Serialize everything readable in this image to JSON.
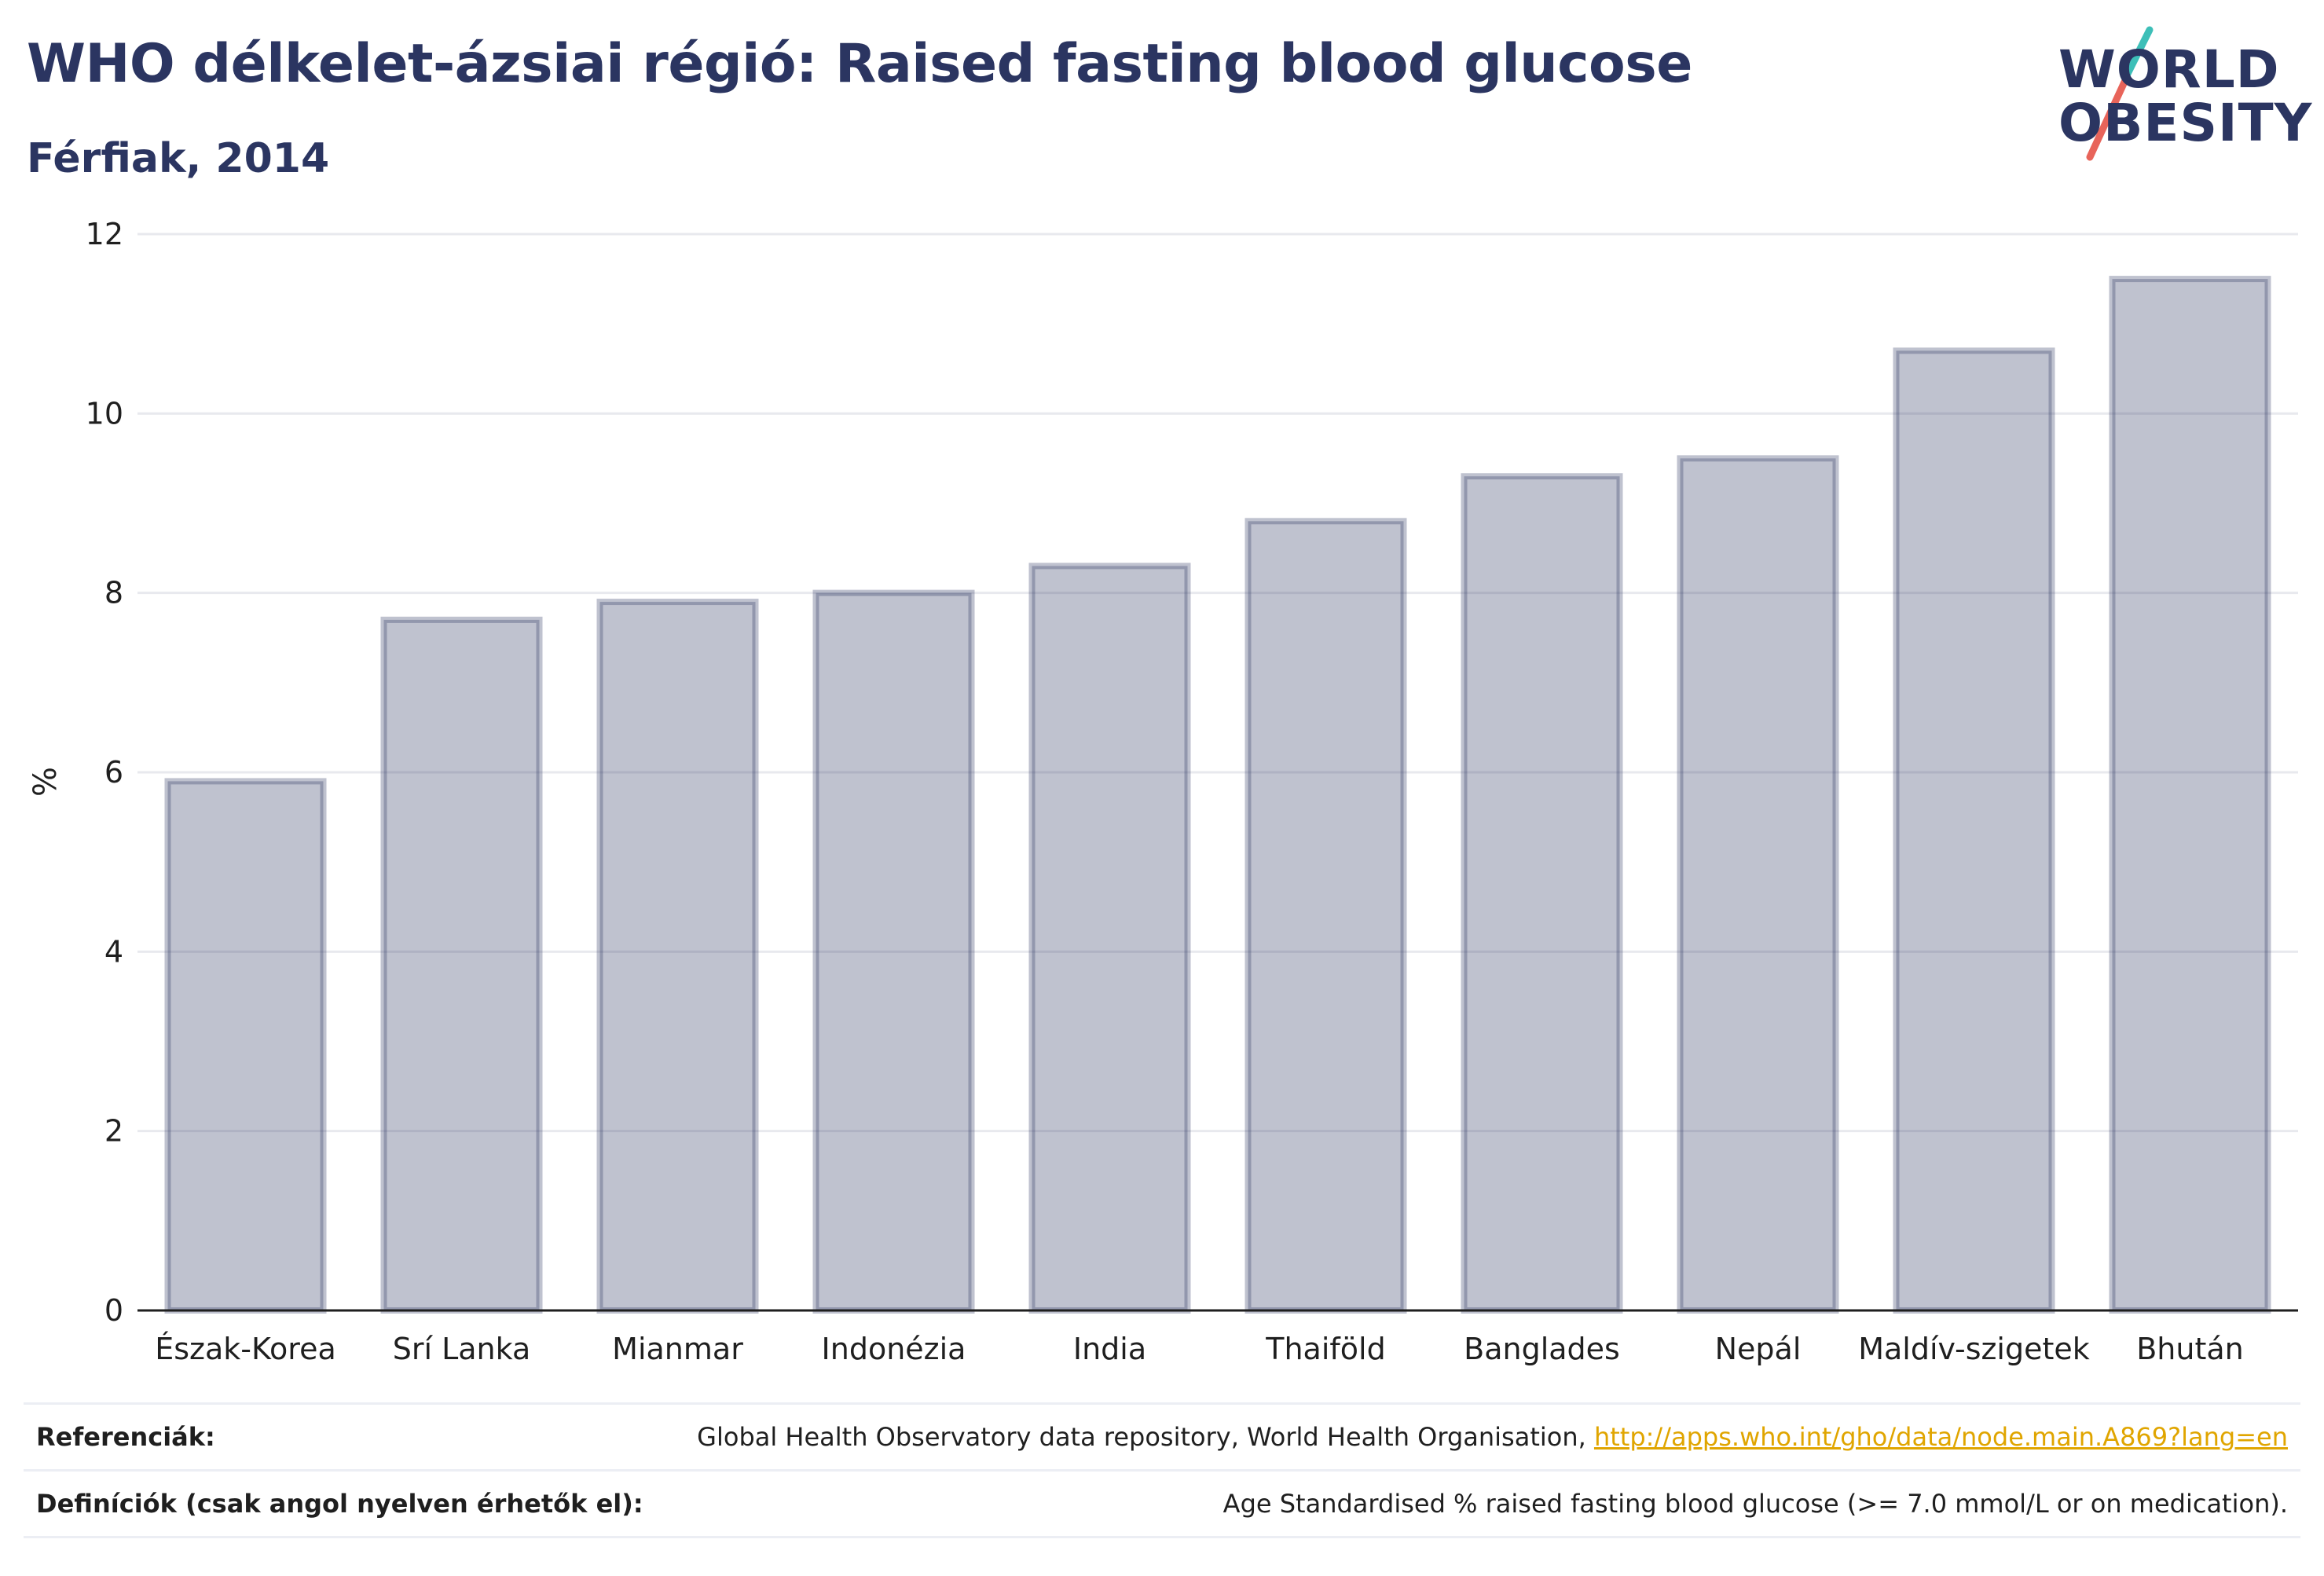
{
  "header": {
    "title": "WHO délkelet-ázsiai régió: Raised fasting blood glucose",
    "subtitle": "Férfiak, 2014"
  },
  "logo": {
    "line1": "WORLD",
    "line2": "OBESITY",
    "colors": {
      "text": "#2b3561",
      "slash_top": "#3dbfb8",
      "slash_bottom": "#e8645a"
    }
  },
  "chart_data": {
    "type": "bar",
    "categories": [
      "Észak-Korea",
      "Srí Lanka",
      "Mianmar",
      "Indonézia",
      "India",
      "Thaiföld",
      "Banglades",
      "Nepál",
      "Maldív-szigetek",
      "Bhután"
    ],
    "values": [
      5.9,
      7.7,
      7.9,
      8.0,
      8.3,
      8.8,
      9.3,
      9.5,
      10.7,
      11.5
    ],
    "title": "WHO délkelet-ázsiai régió: Raised fasting blood glucose",
    "subtitle": "Férfiak, 2014",
    "xlabel": "",
    "ylabel": "%",
    "ylim": [
      0,
      12
    ],
    "yticks": [
      0,
      2,
      4,
      6,
      8,
      10,
      12
    ],
    "grid": true,
    "bar_fill": "#2b3561",
    "bar_fill_opacity": 0.3
  },
  "references": [
    {
      "label": "Referenciák:",
      "text": "Global Health Observatory data repository, World Health Organisation, ",
      "link": "http://apps.who.int/gho/data/node.main.A869?lang=en"
    },
    {
      "label": "Definíciók (csak angol nyelven érhetők el):",
      "text": "Age Standardised % raised fasting blood glucose (>= 7.0 mmol/L or on medication).",
      "link": ""
    }
  ]
}
